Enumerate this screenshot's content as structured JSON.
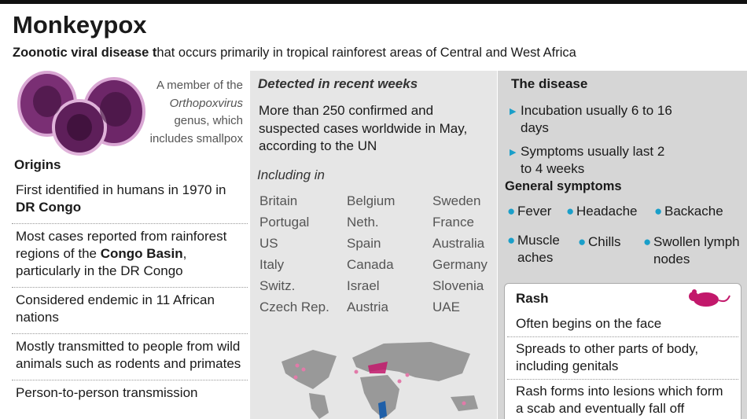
{
  "header": {
    "title": "Monkeypox",
    "subtitle": [
      {
        "text": "Zoonotic viral disease t",
        "bold": true
      },
      {
        "text": "hat occurs primarily in tropical rainforest areas of Central and West Africa",
        "bold": false
      }
    ]
  },
  "left": {
    "caption": [
      {
        "text": "A member of the",
        "italic": false
      },
      {
        "text": "Orthopoxvirus",
        "italic": true
      },
      {
        "text": "genus, which",
        "italic": false
      },
      {
        "text": "includes smallpox",
        "italic": false
      }
    ],
    "heading": "Origins",
    "items": [
      [
        {
          "text": "First identified in humans in 1970 in ",
          "bold": false
        },
        {
          "text": "DR Congo",
          "bold": true
        }
      ],
      [
        {
          "text": "Most cases reported from rainforest regions of the ",
          "bold": false
        },
        {
          "text": "Congo Basin",
          "bold": true
        },
        {
          "text": ", particularly in the DR Congo",
          "bold": false
        }
      ],
      [
        {
          "text": "Considered endemic in 11 African nations",
          "bold": false
        }
      ],
      [
        {
          "text": "Mostly transmitted to people from wild animals such as rodents and primates",
          "bold": false
        }
      ],
      [
        {
          "text": "Person-to-person transmission",
          "bold": false
        }
      ]
    ]
  },
  "middle": {
    "heading": "Detected in recent weeks",
    "text": "More than 250 confirmed and suspected cases worldwide in May, according to the UN",
    "subheading": "Including in",
    "countries": [
      "Britain",
      "Belgium",
      "Sweden",
      "Portugal",
      "Neth.",
      "France",
      "US",
      "Spain",
      "Australia",
      "Italy",
      "Canada",
      "Germany",
      "Switz.",
      "Israel",
      "Slovenia",
      "Czech Rep.",
      "Austria",
      "UAE"
    ]
  },
  "right": {
    "heading": "The disease",
    "bullets": [
      "Incubation usually 6 to 16 days",
      "Symptoms usually last 2 to 4 weeks"
    ],
    "symptoms_heading": "General symptoms",
    "symptoms": [
      "Fever",
      "Headache",
      "Backache",
      "Muscle aches",
      "Chills",
      "Swollen lymph nodes"
    ],
    "rash": {
      "heading": "Rash",
      "items": [
        "Often begins on the face",
        "Spreads to other parts of body, including genitals",
        "Rash forms into lesions which form a scab and eventually fall off"
      ]
    }
  }
}
